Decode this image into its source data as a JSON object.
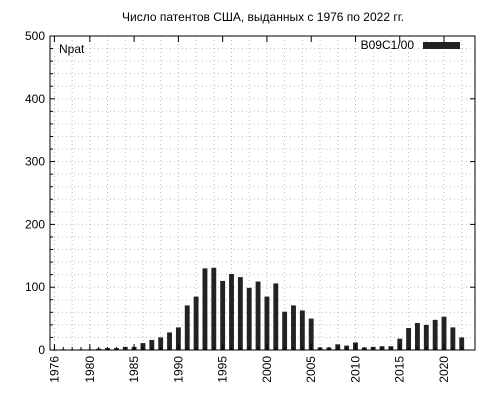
{
  "chart_data": {
    "type": "bar",
    "title": "Число патентов США, выданных с 1976 по 2022 гг.",
    "ylabel": "Npat",
    "xlabel": "",
    "ylim": [
      0,
      500
    ],
    "xlim": [
      1975.5,
      2023.5
    ],
    "y_ticks": [
      0,
      100,
      200,
      300,
      400,
      500
    ],
    "x_ticks": [
      1976,
      1980,
      1985,
      1990,
      1995,
      2000,
      2005,
      2010,
      2015,
      2020
    ],
    "grid": true,
    "legend_position": "top-right",
    "series": [
      {
        "name": "B09C1/00",
        "color": "#222222",
        "x": [
          1976,
          1977,
          1978,
          1979,
          1980,
          1981,
          1982,
          1983,
          1984,
          1985,
          1986,
          1987,
          1988,
          1989,
          1990,
          1991,
          1992,
          1993,
          1994,
          1995,
          1996,
          1997,
          1998,
          1999,
          2000,
          2001,
          2002,
          2003,
          2004,
          2005,
          2006,
          2007,
          2008,
          2009,
          2010,
          2011,
          2012,
          2013,
          2014,
          2015,
          2016,
          2017,
          2018,
          2019,
          2020,
          2021,
          2022
        ],
        "values": [
          0,
          1,
          0,
          1,
          1,
          2,
          3,
          3,
          5,
          5,
          11,
          16,
          20,
          28,
          36,
          71,
          85,
          130,
          131,
          110,
          121,
          116,
          99,
          109,
          85,
          106,
          61,
          71,
          63,
          50,
          4,
          4,
          9,
          7,
          12,
          4,
          5,
          6,
          6,
          18,
          35,
          43,
          40,
          48,
          53,
          36,
          20
        ]
      }
    ]
  }
}
